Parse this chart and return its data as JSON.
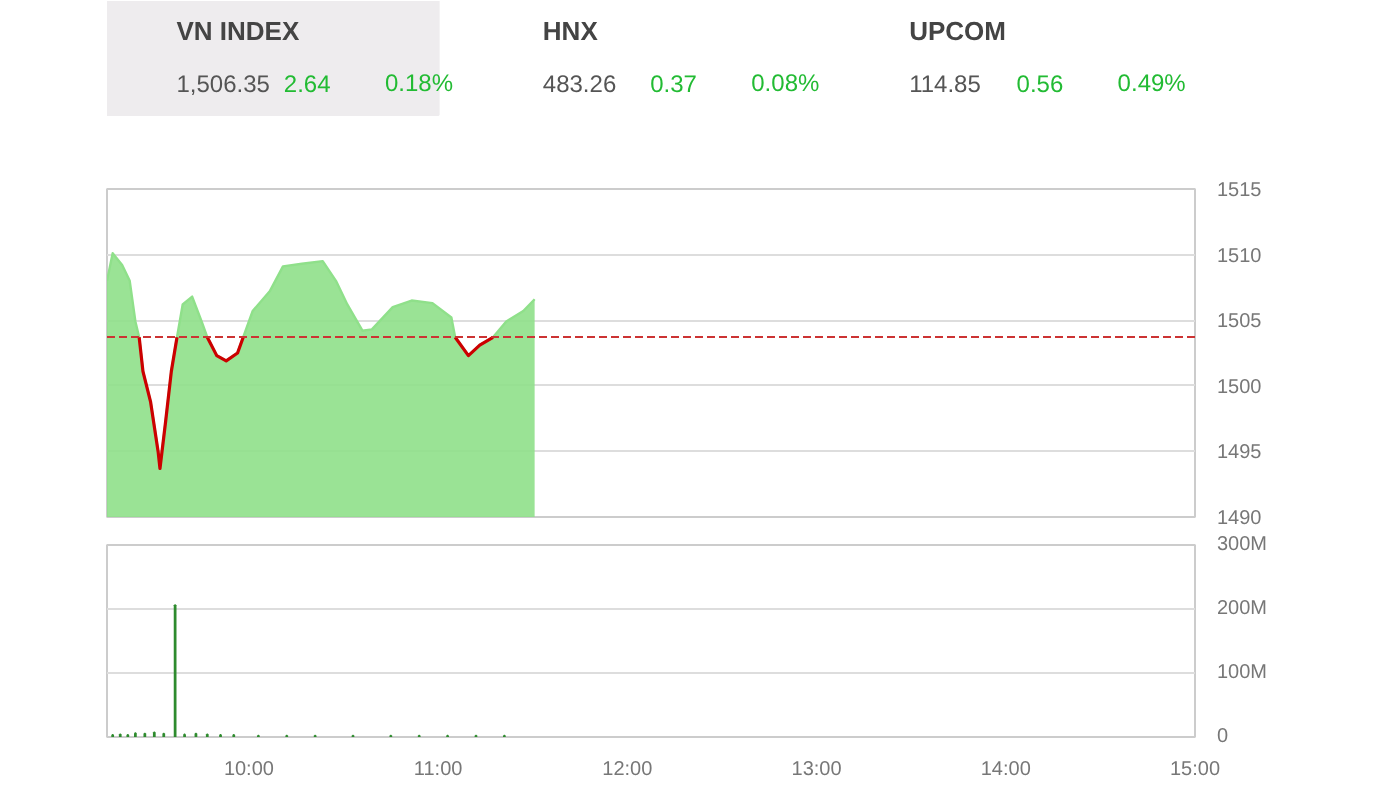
{
  "chart_data": [
    {
      "type": "other",
      "categories": [
        "VN INDEX",
        "HNX",
        "UPCOM"
      ],
      "color": "#22bb33",
      "annotations": [
        "1,506.35",
        "2.64",
        "0.18%",
        "483.26",
        "0.37",
        "0.08%",
        "114.85",
        "0.56",
        "0.49%"
      ]
    },
    {
      "type": "area",
      "x": [
        9.25,
        9.28,
        9.33,
        9.37,
        9.4,
        9.42,
        9.44,
        9.48,
        9.52,
        9.53,
        9.56,
        9.59,
        9.62,
        9.65,
        9.7,
        9.75,
        9.78,
        9.83,
        9.88,
        9.94,
        9.97,
        10.02,
        10.11,
        10.18,
        10.28,
        10.39,
        10.46,
        10.52,
        10.6,
        10.65,
        10.76,
        10.86,
        10.97,
        11.07,
        11.09,
        11.16,
        11.22,
        11.29,
        11.36,
        11.45,
        11.51
      ],
      "series": [
        {
          "color": "#8fe08a",
          "values": [
            1508.0,
            1510.1,
            1509.2,
            1508.0,
            1504.9,
            1503.7,
            1501.1,
            1498.8,
            1495.0,
            1493.7,
            1497.3,
            1501.1,
            1503.7,
            1506.2,
            1506.8,
            1504.9,
            1503.7,
            1502.3,
            1501.9,
            1502.5,
            1503.7,
            1505.7,
            1507.2,
            1509.1,
            1509.3,
            1509.5,
            1508.0,
            1506.2,
            1504.2,
            1504.3,
            1506.0,
            1506.5,
            1506.3,
            1505.2,
            1503.7,
            1502.3,
            1503.1,
            1503.7,
            1504.9,
            1505.7,
            1506.6
          ]
        },
        {
          "type": "line",
          "color": "#cc0000",
          "values": [
            null,
            null,
            null,
            null,
            null,
            1503.7,
            1501.1,
            1498.8,
            1495.0,
            1493.7,
            1497.3,
            1501.1,
            1503.7,
            null,
            null,
            null,
            1503.7,
            1502.3,
            1501.9,
            1502.5,
            1503.7,
            null,
            null,
            null,
            null,
            null,
            null,
            null,
            null,
            null,
            null,
            null,
            null,
            null,
            1503.7,
            1502.3,
            1503.1,
            1503.7,
            null,
            null,
            null
          ]
        }
      ],
      "ref_lines": [
        {
          "axis": "y",
          "value": 1503.71,
          "color": "#cc3333",
          "line_style": "dashed"
        }
      ],
      "xlim": [
        9.25,
        15
      ],
      "ylim": [
        1490,
        1515
      ],
      "yticks": [
        1490,
        1495,
        1500,
        1505,
        1510,
        1515
      ],
      "grid": "y",
      "tick_labels": "y"
    },
    {
      "type": "bar",
      "x": [
        9.28,
        9.32,
        9.36,
        9.4,
        9.45,
        9.5,
        9.55,
        9.61,
        9.66,
        9.72,
        9.78,
        9.85,
        9.92,
        10.05,
        10.2,
        10.35,
        10.55,
        10.75,
        10.9,
        11.05,
        11.2,
        11.35
      ],
      "series": [
        {
          "color": "#2e8b2e",
          "values": [
            3,
            4,
            3,
            6,
            5,
            7,
            5,
            206,
            4,
            5,
            4,
            3,
            3,
            2,
            2,
            2,
            2,
            2,
            2,
            2,
            2,
            2
          ]
        }
      ],
      "xlim": [
        9.25,
        15
      ],
      "xticks": [
        {
          "value": 10,
          "label": "10:00"
        },
        {
          "value": 11,
          "label": "11:00"
        },
        {
          "value": 12,
          "label": "12:00"
        },
        {
          "value": 13,
          "label": "13:00"
        },
        {
          "value": 14,
          "label": "14:00"
        },
        {
          "value": 15,
          "label": "15:00"
        }
      ],
      "ylim": [
        0,
        300
      ],
      "yticks": [
        {
          "value": 0,
          "label": "0"
        },
        {
          "value": 100,
          "label": "100M"
        },
        {
          "value": 200,
          "label": "200M"
        },
        {
          "value": 300,
          "label": "300M"
        }
      ],
      "grid": "y"
    }
  ]
}
